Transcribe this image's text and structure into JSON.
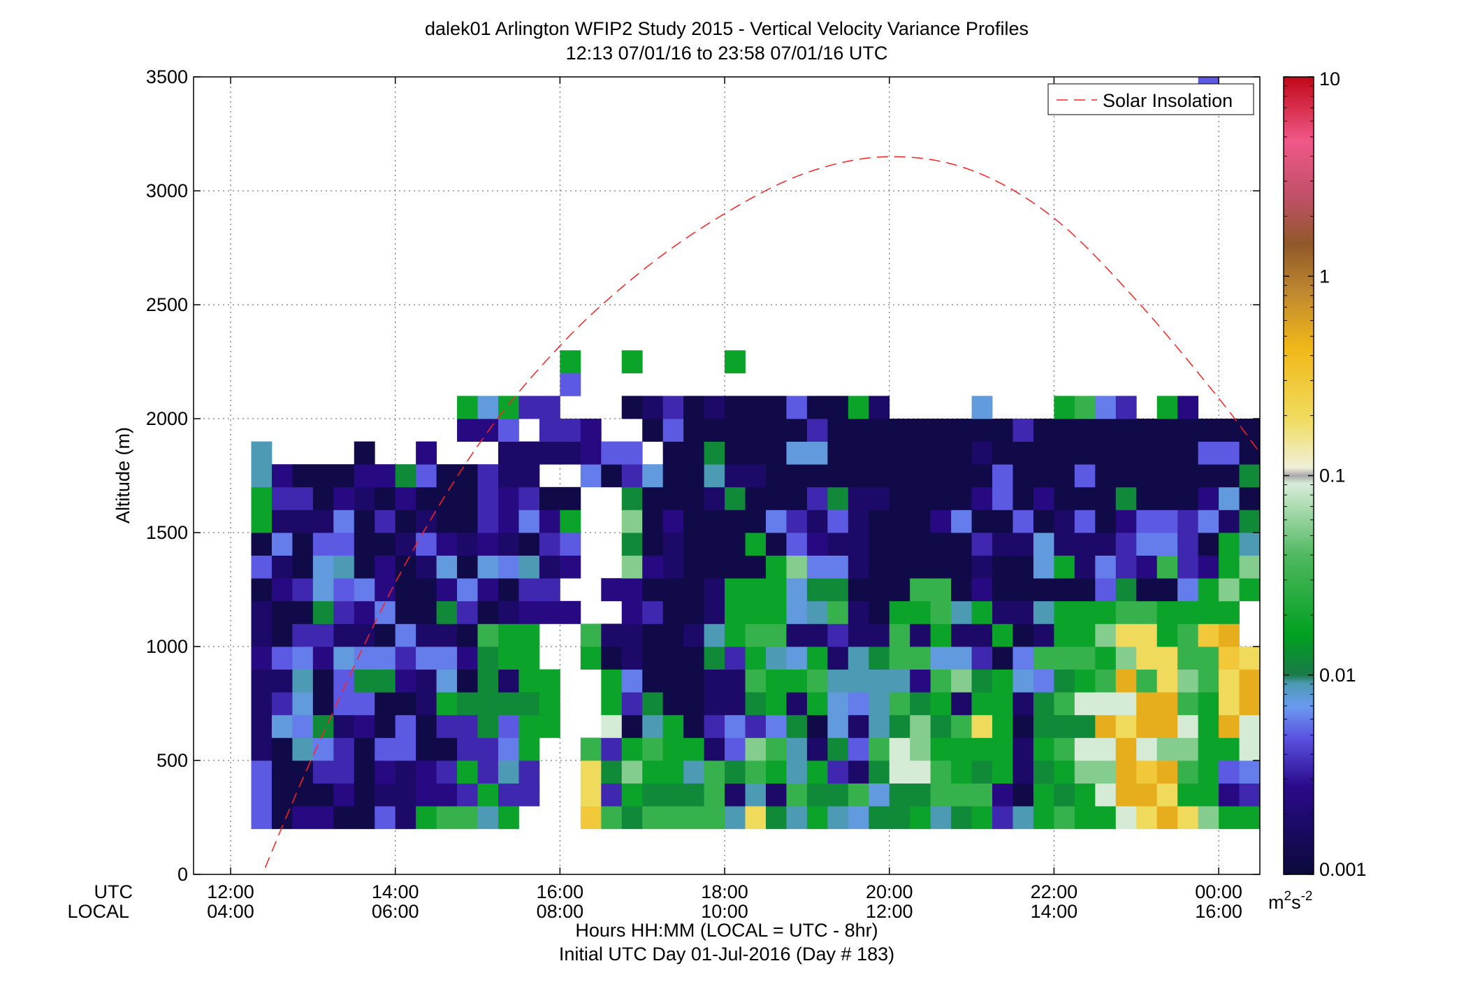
{
  "title_line1": "dalek01 Arlington WFIP2 Study 2015 - Vertical Velocity Variance Profiles",
  "title_line2": "12:13 07/01/16 to 23:58 07/01/16  UTC",
  "ylabel": "Altitude (m)",
  "xlabel_line1": "Hours HH:MM  (LOCAL = UTC - 8hr)",
  "xlabel_line2": "Initial UTC Day 01-Jul-2016 (Day # 183)",
  "row_label_utc": "UTC",
  "row_label_local": "LOCAL",
  "legend_label": "Solar Insolation",
  "colorbar_unit_base": "m",
  "colorbar_unit_exp1": "2",
  "colorbar_unit_mid": "s",
  "colorbar_unit_exp2": "-2",
  "colors": {
    "solar_line": "#ff2020"
  },
  "chart_data": {
    "type": "heatmap",
    "x_unit": "hours UTC (relative to 07/01/16 00:00)",
    "xlim": [
      11.55,
      24.5
    ],
    "ylim": [
      0,
      3500
    ],
    "grid": true,
    "legend_position": "top-right",
    "x_ticks": [
      {
        "value": 12,
        "utc": "12:00",
        "local": "04:00"
      },
      {
        "value": 14,
        "utc": "14:00",
        "local": "06:00"
      },
      {
        "value": 16,
        "utc": "16:00",
        "local": "08:00"
      },
      {
        "value": 18,
        "utc": "18:00",
        "local": "10:00"
      },
      {
        "value": 20,
        "utc": "20:00",
        "local": "12:00"
      },
      {
        "value": 22,
        "utc": "22:00",
        "local": "14:00"
      },
      {
        "value": 24,
        "utc": "00:00",
        "local": "16:00"
      }
    ],
    "y_ticks": [
      {
        "value": 0,
        "label": "0"
      },
      {
        "value": 500,
        "label": "500"
      },
      {
        "value": 1000,
        "label": "1000"
      },
      {
        "value": 1500,
        "label": "1500"
      },
      {
        "value": 2000,
        "label": "2000"
      },
      {
        "value": 2500,
        "label": "2500"
      },
      {
        "value": 3000,
        "label": "3000"
      },
      {
        "value": 3500,
        "label": "3500"
      }
    ],
    "colorbar": {
      "scale": "log",
      "range": [
        0.001,
        10
      ],
      "ticks": [
        {
          "value": 0.001,
          "label": "0.001"
        },
        {
          "value": 0.01,
          "label": "0.01"
        },
        {
          "value": 0.1,
          "label": "0.1"
        },
        {
          "value": 1,
          "label": "1"
        },
        {
          "value": 10,
          "label": "10"
        }
      ]
    },
    "cells": {
      "x_start_hours": 12.25,
      "dx_hours": 0.25,
      "y_start_m": 200,
      "dy_m": 100,
      "encoding": "rows from bottom (200 m) to top; each char is one 15-min column starting 12:15 UTC; '.' = no data; letters give the variance level on the log color scale",
      "legend": {
        "a": 0.0012,
        "b": 0.0018,
        "c": 0.0025,
        "d": 0.0035,
        "e": 0.005,
        "f": 0.006,
        "g": 0.0075,
        "h": 0.009,
        "i": 0.012,
        "j": 0.018,
        "k": 0.03,
        "l": 0.055,
        "m": 0.09,
        "n": 0.2,
        "o": 0.3,
        "p": 0.5,
        "q": 1.5
      },
      "rows": [
        "eaccaaebjkkhj...okikkkkhnihjhgiijhijdhjkjjmnpnljjnn",
        "eaaacabbccdjdd..ndjiiikbhbkiikgiikkkcajijmppnjjcdqm",
        "eaaddacbcdjdhd..niljjhkikjhjdbimmkjijbijllpopkjefmm",
        "bahfdaeeaaddfj..kdjkjjbelkhbiekmljjjjbjkmmpmlljjmnm",
        "bgfibcaeaddiejj..mahjadfdfiagbhiliknjaiiipnppmjpmm",
        "bdgaeeaabjiiiij..jdiaabbijbjgfhkijbjjbikmmmppkjnp",
        "bbhaeiicbgaibjj..jfaaabbkjjkhhhhcklijgfijkpknlknpm",
        "cefcgffdffcijj..jabaaaidjhgjbhikkggdafkkkjlnnkkonp",
        "baddbbafbbakjj..kbbaabhjkkbbdbbkbjbbjabjjlnnjkop",
        "baaidcfaaidabccc..cdaabjjjghkbajjkhjbbhjjjkkjjjj",
        "acdgefcaacfcadd..ccaaabjjjgiiaaakkacaaaaaeiaafjlje",
        "ebaghacabgagfhbc..lcbaaaajlffbaaaaabaagjbfdckdcjl",
        "afaeeaabecbcbade..iabaaajaecbbaaaaadbbgbbbdffdajh",
        "jbbbfadabaadcfcj..lacaaaafdbebaaacfaaeabeaceedfbijj",
        "jddacbacaaadcdaa..iaaabiaaadibbaaaaceacaaaiaaacgaajc",
        "hcaaaccieaadbb..fadgaahbbaaaaaaaaaaaeaaaeaaaaaaaibke",
        "h....a..c...bbbbcee.aaiaaaggaaaaaaabaaaaaaaaaaeeaee",
        "..........cce.ddc..aeaaaaaadaaaaaaaaadaaaaaaaaaaaaae",
        "..........jgjdd...abdabaaaeaajb....g...jkfd.jc",
        "...............e......................",
        "...............j..j....j",
        "",
        "",
        "",
        "",
        "",
        "",
        "",
        "",
        "",
        "",
        "",
        "..............................................e"
      ]
    },
    "series": [
      {
        "name": "Solar Insolation",
        "type": "line",
        "style": "dashed",
        "x": [
          12.42,
          13,
          14,
          15,
          16,
          17,
          18,
          19,
          20,
          21,
          22,
          23,
          24,
          24.5
        ],
        "y": [
          30,
          520,
          1280,
          1880,
          2320,
          2650,
          2900,
          3080,
          3150,
          3090,
          2880,
          2520,
          2090,
          1850
        ]
      }
    ]
  }
}
